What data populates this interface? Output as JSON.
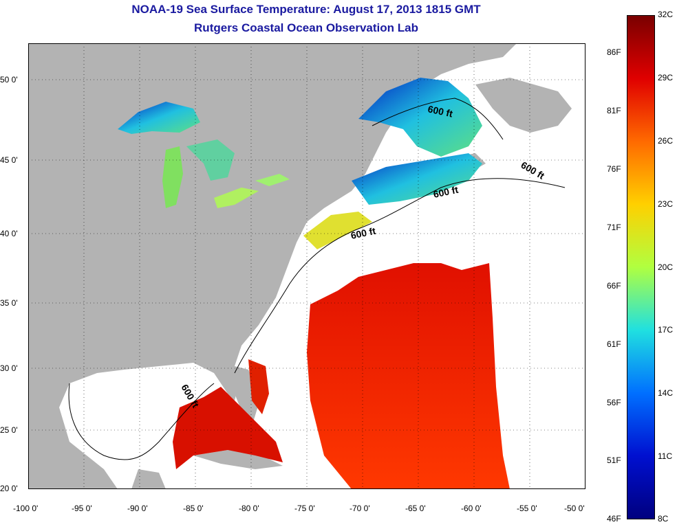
{
  "title": "NOAA-19 Sea Surface Temperature:  August 17, 2013 1815 GMT",
  "subtitle": "Rutgers Coastal Ocean Observation Lab",
  "x_ticks": [
    "-100 0'",
    "-95 0'",
    "-90 0'",
    "-85 0'",
    "-80 0'",
    "-75 0'",
    "-70 0'",
    "-65 0'",
    "-60 0'",
    "-55 0'",
    "-50 0'"
  ],
  "y_ticks": [
    "50 0'",
    "45 0'",
    "40 0'",
    "35 0'",
    "30 0'",
    "25 0'",
    "20 0'"
  ],
  "isobath_label": "600 ft",
  "colorbar": {
    "celsius": [
      "32C",
      "29C",
      "26C",
      "23C",
      "20C",
      "17C",
      "14C",
      "11C",
      "8C"
    ],
    "fahrenheit": [
      "86F",
      "81F",
      "76F",
      "71F",
      "66F",
      "61F",
      "56F",
      "51F",
      "46F"
    ],
    "colors": [
      "#7a0000",
      "#e00000",
      "#ff6a00",
      "#ffd000",
      "#b0ff40",
      "#20e0e0",
      "#0070ff",
      "#0010d0",
      "#00007f"
    ]
  },
  "colors": {
    "land": "#b3b3b3",
    "ocean_no_data": "#ffffff",
    "title": "#1a1aa0"
  }
}
